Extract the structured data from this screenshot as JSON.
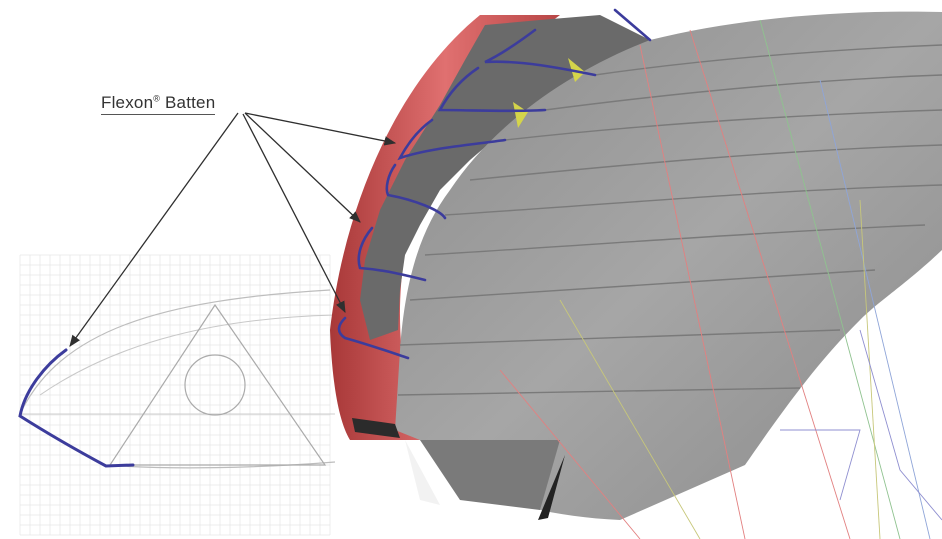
{
  "callout": {
    "prefix": "Flexon",
    "mark": "®",
    "suffix": " Batten"
  },
  "colors": {
    "canopy_gray": "#9e9e9e",
    "canopy_dark": "#5a5a5a",
    "leading_edge_red": "#c95050",
    "batten_blue": "#3c3c9c",
    "highlight_yellow": "#d4d44a",
    "arrow": "#333333",
    "grid": "#e6e6e6"
  }
}
